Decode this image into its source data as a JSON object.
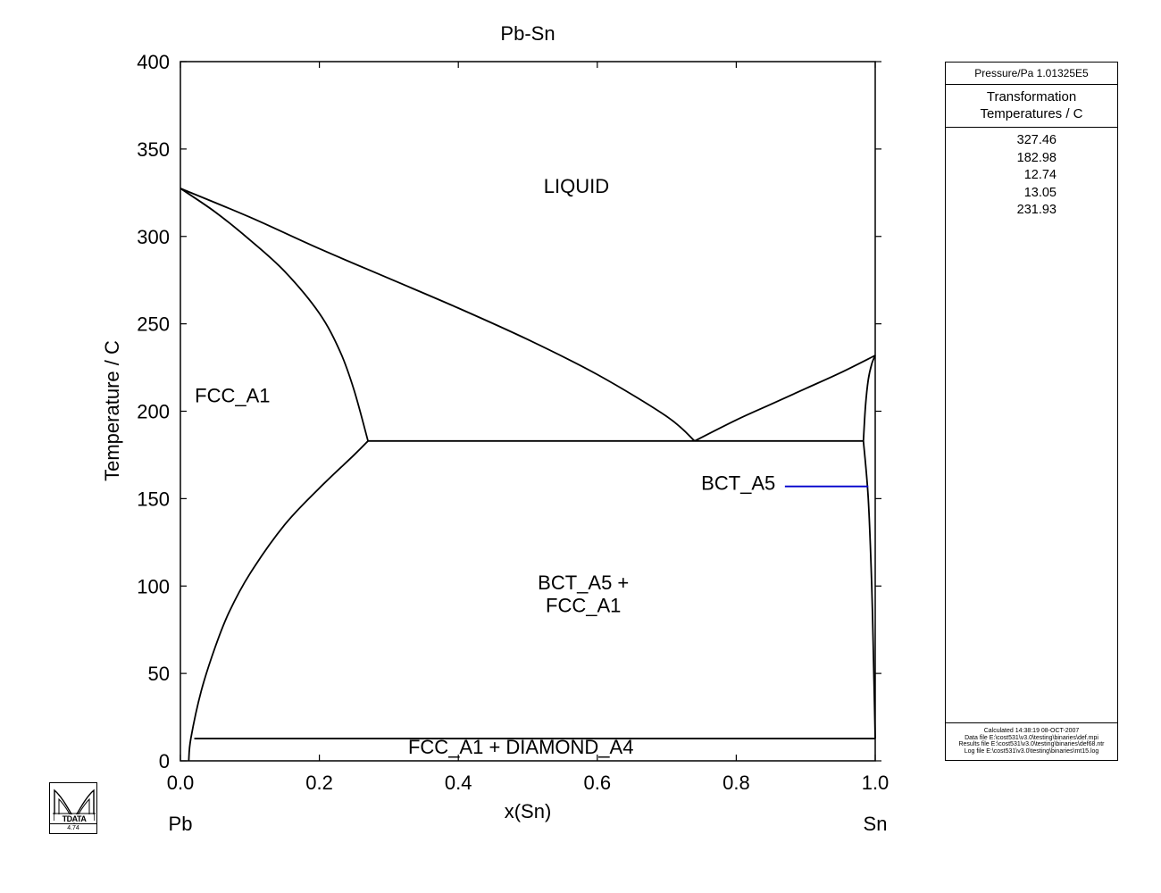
{
  "chart_data": {
    "type": "line",
    "title": "Pb-Sn",
    "xlabel": "x(Sn)",
    "ylabel": "Temperature / C",
    "xlim": [
      0,
      1
    ],
    "ylim": [
      0,
      400
    ],
    "x_ticks": [
      "0.0",
      "0.2",
      "0.4",
      "0.6",
      "0.8",
      "1.0"
    ],
    "x_tick_values": [
      0,
      0.2,
      0.4,
      0.6,
      0.8,
      1.0
    ],
    "y_ticks": [
      "0",
      "50",
      "100",
      "150",
      "200",
      "250",
      "300",
      "350",
      "400"
    ],
    "y_tick_values": [
      0,
      50,
      100,
      150,
      200,
      250,
      300,
      350,
      400
    ],
    "x_end_labels": {
      "left": "Pb",
      "right": "Sn"
    },
    "grid": false,
    "series": [
      {
        "x": [
          0.0,
          0.1,
          0.2,
          0.3,
          0.4,
          0.5,
          0.6,
          0.7,
          0.74
        ],
        "y": [
          327.46,
          311,
          293,
          276,
          259,
          241,
          221,
          197,
          182.98
        ]
      },
      {
        "x": [
          0.74,
          0.8,
          0.85,
          0.9,
          0.95,
          1.0
        ],
        "y": [
          182.98,
          195,
          204,
          213,
          222,
          231.93
        ]
      },
      {
        "x": [
          0.0,
          0.05,
          0.1,
          0.15,
          0.2,
          0.23,
          0.25,
          0.27
        ],
        "y": [
          327.46,
          314,
          298,
          280,
          256,
          234,
          212,
          182.98
        ]
      },
      {
        "x": [
          0.27,
          0.25,
          0.2,
          0.15,
          0.1,
          0.07,
          0.05,
          0.03,
          0.015,
          0.012
        ],
        "y": [
          182.98,
          175,
          156,
          135,
          107,
          85,
          65,
          40,
          12.74,
          0
        ]
      },
      {
        "x": [
          0.27,
          0.983
        ],
        "y": [
          182.98,
          182.98
        ]
      },
      {
        "x": [
          0.983,
          0.986,
          0.99,
          0.995,
          1.0
        ],
        "y": [
          182.98,
          203,
          218,
          227,
          231.93
        ]
      },
      {
        "x": [
          0.983,
          0.99,
          0.995,
          0.998,
          1.0
        ],
        "y": [
          182.98,
          150,
          100,
          50,
          12.74
        ]
      },
      {
        "x": [
          0.02,
          1.0
        ],
        "y": [
          12.74,
          12.74
        ]
      }
    ],
    "phase_labels": [
      {
        "text": "LIQUID",
        "x": 0.57,
        "y": 325
      },
      {
        "text": "FCC_A1",
        "x": 0.075,
        "y": 205
      },
      {
        "text": "BCT_A5",
        "x": 0.803,
        "y": 155
      },
      {
        "text": "BCT_A5 +",
        "x": 0.58,
        "y": 98
      },
      {
        "text": "FCC_A1",
        "x": 0.58,
        "y": 85
      },
      {
        "text": "FCC_A1 + DIAMOND_A4",
        "x": 0.49,
        "y": 4
      }
    ],
    "label_pointer": {
      "x1": 0.87,
      "x2": 0.99,
      "y": 157,
      "color": "#0000cc"
    }
  },
  "info_panel": {
    "pressure": "Pressure/Pa  1.01325E5",
    "title_line1": "Transformation",
    "title_line2": "Temperatures / C",
    "temperatures": [
      "327.46",
      "182.98",
      "12.74",
      "13.05",
      "231.93"
    ],
    "footer": [
      "Calculated  14:38:19  08-OCT-2007",
      "Data file  E:\\cost531\\v3.0\\testing\\binaries\\def.mpi",
      "Results file  E:\\cost531\\v3.0\\testing\\binaries\\def68.ntr",
      "Log file  E:\\cost531\\v3.0\\testing\\binaries\\mt15.log"
    ]
  },
  "logo": {
    "text": "MTDATA",
    "version": "4.74"
  }
}
